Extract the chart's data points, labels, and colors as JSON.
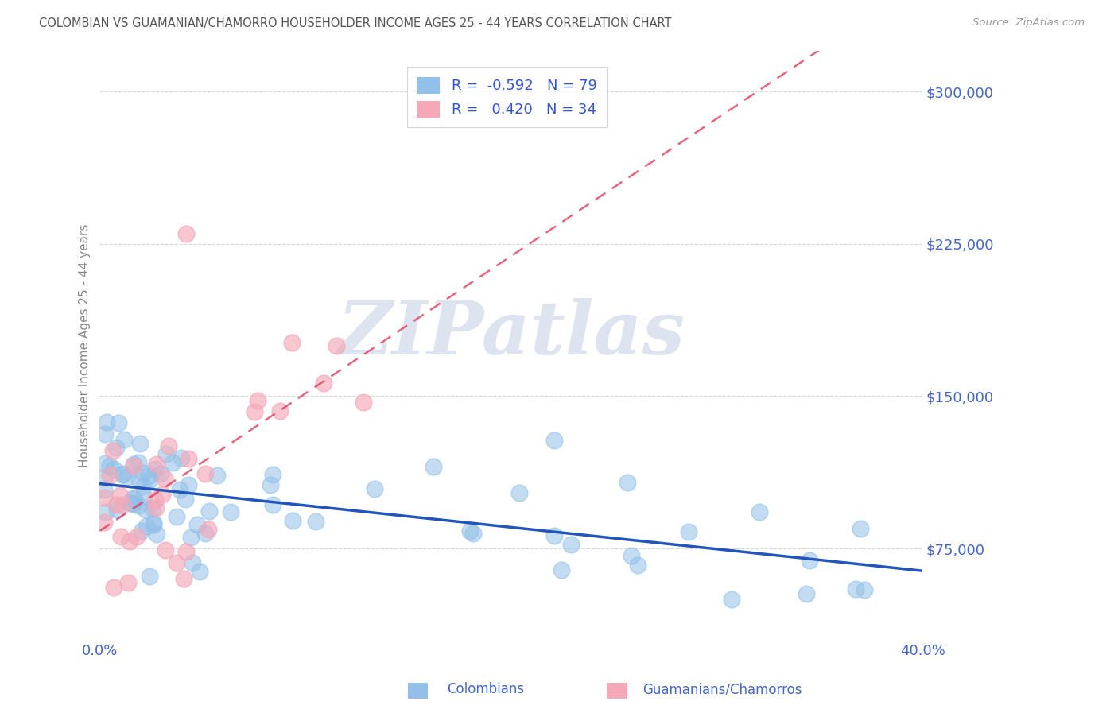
{
  "title": "COLOMBIAN VS GUAMANIAN/CHAMORRO HOUSEHOLDER INCOME AGES 25 - 44 YEARS CORRELATION CHART",
  "source": "Source: ZipAtlas.com",
  "ylabel": "Householder Income Ages 25 - 44 years",
  "ytick_values": [
    75000,
    150000,
    225000,
    300000
  ],
  "ytick_labels": [
    "$75,000",
    "$150,000",
    "$225,000",
    "$300,000"
  ],
  "ymin": 30000,
  "ymax": 320000,
  "xmin": 0.0,
  "xmax": 0.4,
  "legend_blue_r": "-0.592",
  "legend_blue_n": "79",
  "legend_pink_r": "0.420",
  "legend_pink_n": "34",
  "blue_color": "#92c0e8",
  "pink_color": "#f4a8b8",
  "trendline_blue_color": "#2255bb",
  "trendline_pink_color": "#dd3355",
  "background_color": "#ffffff",
  "grid_color": "#cccccc",
  "title_color": "#555555",
  "axis_label_color": "#4466cc",
  "watermark_color": "#dde4f0",
  "legend_label_color": "#3355cc"
}
